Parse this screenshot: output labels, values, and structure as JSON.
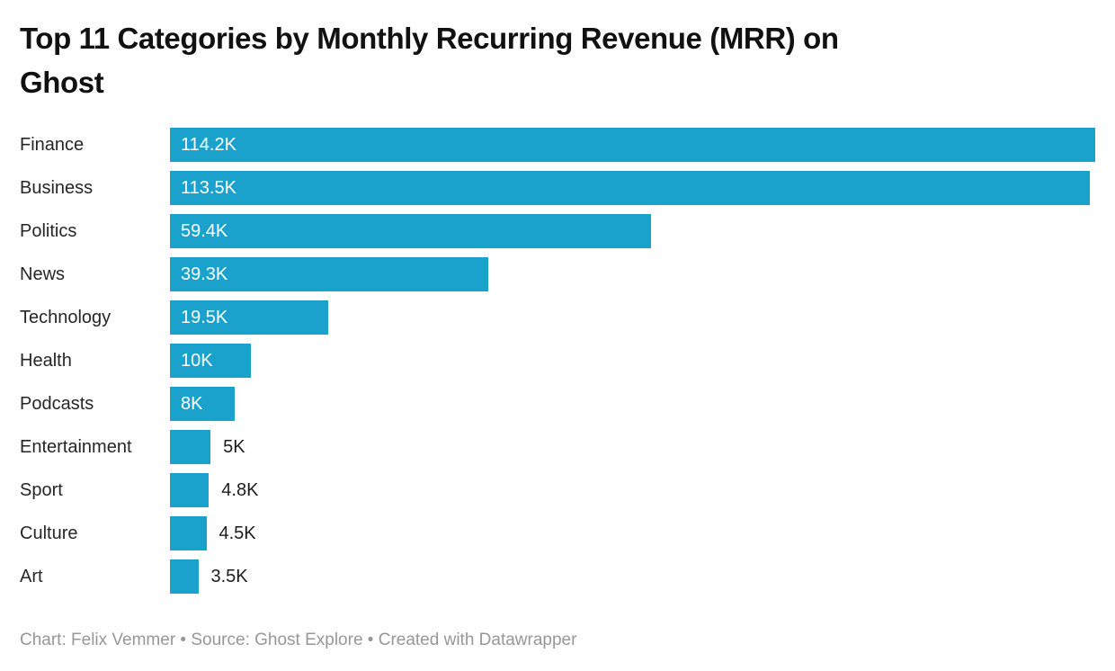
{
  "title": {
    "full": "Top 11 Categories by Monthly Recurring Revenue (MRR) on Ghost",
    "lines": [
      "Top 11 Categories by Monthly Recurring Revenue (MRR) on",
      "Ghost"
    ]
  },
  "chart_data": {
    "type": "bar",
    "orientation": "horizontal",
    "title": "Top 11 Categories by Monthly Recurring Revenue (MRR) on Ghost",
    "categories": [
      "Finance",
      "Business",
      "Politics",
      "News",
      "Technology",
      "Health",
      "Podcasts",
      "Entertainment",
      "Sport",
      "Culture",
      "Art"
    ],
    "values": [
      114200,
      113500,
      59400,
      39300,
      19500,
      10000,
      8000,
      5000,
      4800,
      4500,
      3500
    ],
    "value_labels": [
      "114.2K",
      "113.5K",
      "59.4K",
      "39.3K",
      "19.5K",
      "10K",
      "8K",
      "5K",
      "4.8K",
      "4.5K",
      "3.5K"
    ],
    "label_inside": [
      true,
      true,
      true,
      true,
      true,
      true,
      true,
      false,
      false,
      false,
      false
    ],
    "xlabel": "",
    "ylabel": "",
    "xlim": [
      0,
      114200
    ],
    "grid": false,
    "legend": false,
    "bar_color": "#1aa2cd"
  },
  "footer": {
    "text": "Chart: Felix Vemmer • Source: Ghost Explore • Created with Datawrapper"
  },
  "colors": {
    "bar": "#1aa2cd",
    "title": "#111111",
    "category_label": "#262626",
    "value_inside": "#ffffff",
    "value_outside": "#1d1d1d",
    "footer": "#979797",
    "background": "#ffffff"
  }
}
